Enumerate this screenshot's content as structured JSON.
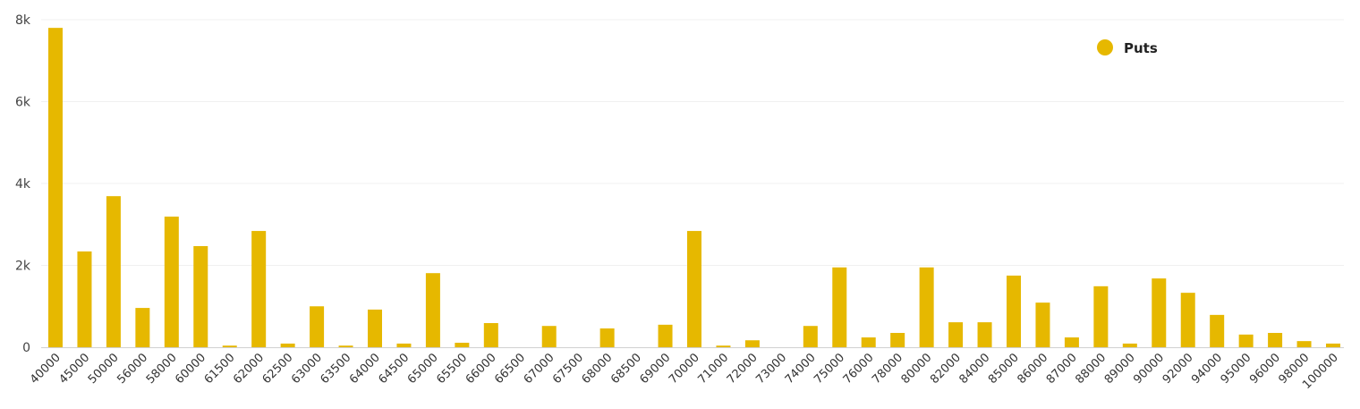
{
  "chart_data": {
    "type": "bar",
    "title": "",
    "xlabel": "",
    "ylabel": "",
    "ylim": [
      0,
      8000
    ],
    "yticks": [
      {
        "value": 0,
        "label": "0"
      },
      {
        "value": 2000,
        "label": "2k"
      },
      {
        "value": 4000,
        "label": "4k"
      },
      {
        "value": 6000,
        "label": "6k"
      },
      {
        "value": 8000,
        "label": "8k"
      }
    ],
    "grid": true,
    "legend_position": "top-right",
    "categories": [
      "40000",
      "45000",
      "50000",
      "56000",
      "58000",
      "60000",
      "61500",
      "62000",
      "62500",
      "63000",
      "63500",
      "64000",
      "64500",
      "65000",
      "65500",
      "66000",
      "66500",
      "67000",
      "67500",
      "68000",
      "68500",
      "69000",
      "70000",
      "71000",
      "72000",
      "73000",
      "74000",
      "75000",
      "76000",
      "78000",
      "80000",
      "82000",
      "84000",
      "85000",
      "86000",
      "87000",
      "88000",
      "89000",
      "90000",
      "92000",
      "94000",
      "95000",
      "96000",
      "98000",
      "100000"
    ],
    "series": [
      {
        "name": "Puts",
        "color": "#E6B800",
        "values": [
          7800,
          2340,
          3690,
          960,
          3190,
          2470,
          40,
          2840,
          90,
          1000,
          40,
          920,
          90,
          1810,
          110,
          590,
          0,
          520,
          0,
          460,
          0,
          550,
          2840,
          40,
          170,
          0,
          520,
          1950,
          240,
          350,
          1950,
          610,
          610,
          1750,
          1090,
          240,
          1490,
          90,
          1680,
          1330,
          790,
          310,
          350,
          150,
          90
        ]
      }
    ]
  }
}
